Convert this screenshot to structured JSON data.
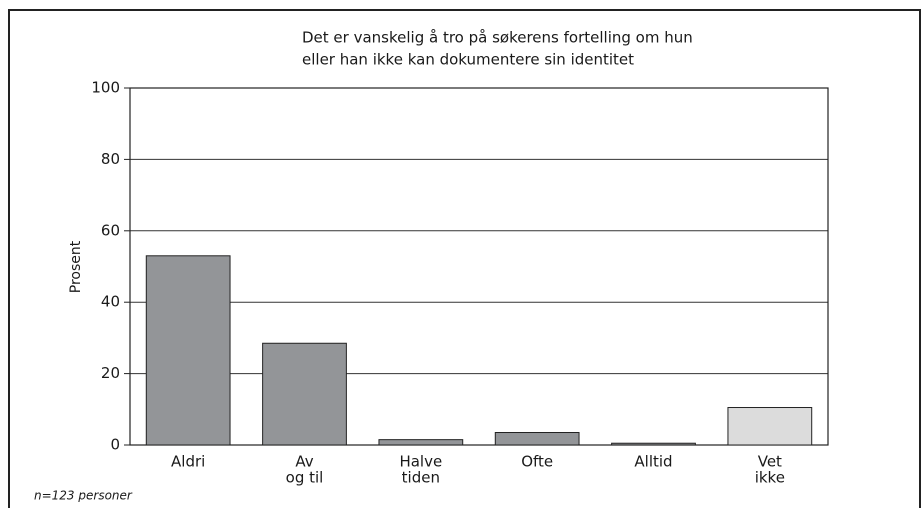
{
  "chart_data": {
    "type": "bar",
    "title": [
      "Det er vanskelig å tro på søkerens fortelling om hun",
      "eller han ikke kan dokumentere sin identitet"
    ],
    "y_label": "Prosent",
    "note": "n=123 personer",
    "categories": [
      [
        "Aldri"
      ],
      [
        "Av",
        "og til"
      ],
      [
        "Halve",
        "tiden"
      ],
      [
        "Ofte"
      ],
      [
        "Alltid"
      ],
      [
        "Vet",
        "ikke"
      ]
    ],
    "values": [
      53,
      28.5,
      1.5,
      3.5,
      0.5,
      10.5
    ],
    "colors": [
      "#939598",
      "#939598",
      "#939598",
      "#939598",
      "#939598",
      "#dcdcdc"
    ],
    "ylim": [
      0,
      100
    ],
    "yticks": [
      0,
      20,
      40,
      60,
      80,
      100
    ],
    "grid": true
  }
}
